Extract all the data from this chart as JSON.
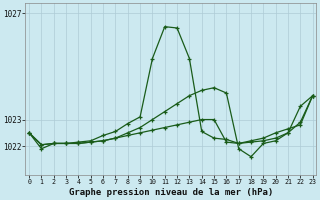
{
  "title": "Graphe pression niveau de la mer (hPa)",
  "background_color": "#cce9f0",
  "line_color": "#1a5c1a",
  "grid_color": "#aeccd6",
  "hours": [
    0,
    1,
    2,
    3,
    4,
    5,
    6,
    7,
    8,
    9,
    10,
    11,
    12,
    13,
    14,
    15,
    16,
    17,
    18,
    19,
    20,
    21,
    22,
    23
  ],
  "series1": [
    1022.5,
    1021.9,
    1022.1,
    1022.1,
    1022.15,
    1022.2,
    1022.4,
    1022.55,
    1022.85,
    1023.1,
    1025.3,
    1026.5,
    1026.45,
    1025.3,
    1022.55,
    1022.3,
    1022.25,
    1022.1,
    1022.15,
    1022.2,
    1022.3,
    1022.5,
    1023.5,
    1023.9
  ],
  "series2": [
    1022.5,
    1022.05,
    1022.1,
    1022.1,
    1022.1,
    1022.15,
    1022.2,
    1022.3,
    1022.5,
    1022.7,
    1023.0,
    1023.3,
    1023.6,
    1023.9,
    1024.1,
    1024.2,
    1024.0,
    1021.9,
    1021.6,
    1022.1,
    1022.2,
    1022.5,
    1022.9,
    1023.9
  ],
  "series3": [
    1022.5,
    1022.05,
    1022.1,
    1022.1,
    1022.1,
    1022.15,
    1022.2,
    1022.3,
    1022.4,
    1022.5,
    1022.6,
    1022.7,
    1022.8,
    1022.9,
    1023.0,
    1023.0,
    1022.15,
    1022.1,
    1022.2,
    1022.3,
    1022.5,
    1022.65,
    1022.8,
    1023.9
  ],
  "ylim_min": 1020.9,
  "ylim_max": 1027.4,
  "ytick_values": [
    1022,
    1023
  ],
  "ytick_top_partial": "1027",
  "xlabel_fontsize": 6.5,
  "title_fontsize": 6.5
}
